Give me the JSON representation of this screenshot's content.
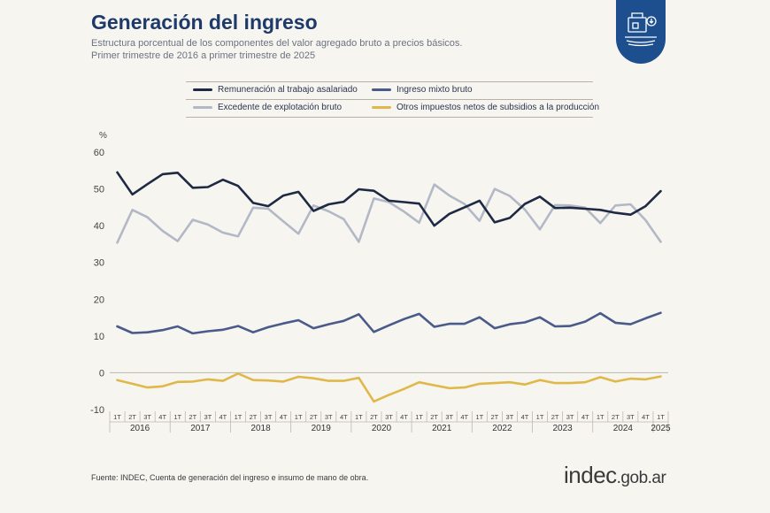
{
  "header": {
    "title": "Generación del ingreso",
    "subtitle_line1": "Estructura porcentual de los componentes del valor agregado bruto a precios básicos.",
    "subtitle_line2": "Primer trimestre de 2016 a primer trimestre de 2025"
  },
  "badge": {
    "icon": "institution-icon",
    "color": "#1d4f8f"
  },
  "legend": {
    "items": [
      {
        "label": "Remuneración al trabajo asalariado",
        "color": "#1e2a44"
      },
      {
        "label": "Ingreso mixto bruto",
        "color": "#4a5a8a"
      },
      {
        "label": "Excedente de explotación bruto",
        "color": "#b3b8c6"
      },
      {
        "label": "Otros impuestos netos de subsidios a la producción",
        "color": "#e0b84a"
      }
    ]
  },
  "chart_data": {
    "type": "line",
    "ylabel": "%",
    "ylim": [
      -10,
      60
    ],
    "yticks": [
      -10,
      0,
      10,
      20,
      30,
      40,
      50,
      60
    ],
    "quarters": [
      "1T",
      "2T",
      "3T",
      "4T",
      "1T",
      "2T",
      "3T",
      "4T",
      "1T",
      "2T",
      "3T",
      "4T",
      "1T",
      "2T",
      "3T",
      "4T",
      "1T",
      "2T",
      "3T",
      "4T",
      "1T",
      "2T",
      "3T",
      "4T",
      "1T",
      "2T",
      "3T",
      "4T",
      "1T",
      "2T",
      "3T",
      "4T",
      "1T",
      "2T",
      "3T",
      "4T",
      "1T"
    ],
    "years": [
      "2016",
      "2017",
      "2018",
      "2019",
      "2020",
      "2021",
      "2022",
      "2023",
      "2024",
      "2025"
    ],
    "series": [
      {
        "name": "Remuneración al trabajo asalariado",
        "color": "#1e2a44",
        "values": [
          54.5,
          48.5,
          51.3,
          54.0,
          54.4,
          50.3,
          50.5,
          52.5,
          50.8,
          46.2,
          45.3,
          48.2,
          49.2,
          44.0,
          45.8,
          46.5,
          49.9,
          49.5,
          46.8,
          46.4,
          46.0,
          40.0,
          43.2,
          45.0,
          46.8,
          40.9,
          42.1,
          45.9,
          47.9,
          44.8,
          44.9,
          44.6,
          44.3,
          43.5,
          43.0,
          45.3,
          49.4
        ]
      },
      {
        "name": "Ingreso mixto bruto",
        "color": "#4a5a8a",
        "values": [
          12.6,
          10.8,
          11.0,
          11.6,
          12.6,
          10.7,
          11.3,
          11.7,
          12.7,
          11.0,
          12.4,
          13.4,
          14.3,
          12.1,
          13.2,
          14.1,
          15.9,
          11.1,
          12.9,
          14.6,
          16.0,
          12.5,
          13.3,
          13.3,
          15.1,
          12.1,
          13.2,
          13.7,
          15.1,
          12.6,
          12.7,
          13.9,
          16.2,
          13.6,
          13.2,
          14.8,
          16.3
        ]
      },
      {
        "name": "Excedente de explotación bruto",
        "color": "#b3b8c6",
        "values": [
          35.4,
          44.3,
          42.3,
          38.6,
          35.8,
          41.6,
          40.3,
          38.1,
          37.1,
          44.9,
          44.6,
          41.2,
          37.8,
          45.5,
          43.9,
          41.8,
          35.6,
          47.4,
          46.4,
          43.8,
          40.8,
          51.2,
          48.2,
          45.9,
          41.3,
          50.0,
          48.1,
          44.4,
          39.0,
          45.6,
          45.5,
          44.9,
          40.7,
          45.5,
          45.8,
          41.5,
          35.6
        ]
      },
      {
        "name": "Otros impuestos netos de subsidios a la producción",
        "color": "#e0b84a",
        "values": [
          -2.0,
          -3.0,
          -4.0,
          -3.7,
          -2.5,
          -2.4,
          -1.8,
          -2.2,
          -0.2,
          -2.0,
          -2.1,
          -2.4,
          -1.1,
          -1.5,
          -2.2,
          -2.2,
          -1.4,
          -7.8,
          -6.0,
          -4.4,
          -2.6,
          -3.4,
          -4.2,
          -4.0,
          -3.0,
          -2.8,
          -2.6,
          -3.2,
          -2.0,
          -2.8,
          -2.8,
          -2.6,
          -1.2,
          -2.4,
          -1.6,
          -1.8,
          -1.0
        ]
      }
    ]
  },
  "footer": {
    "source": "Fuente: INDEC, Cuenta de generación del ingreso e insumo de mano de obra.",
    "logo_main": "indec",
    "logo_suffix": ".gob.ar"
  }
}
